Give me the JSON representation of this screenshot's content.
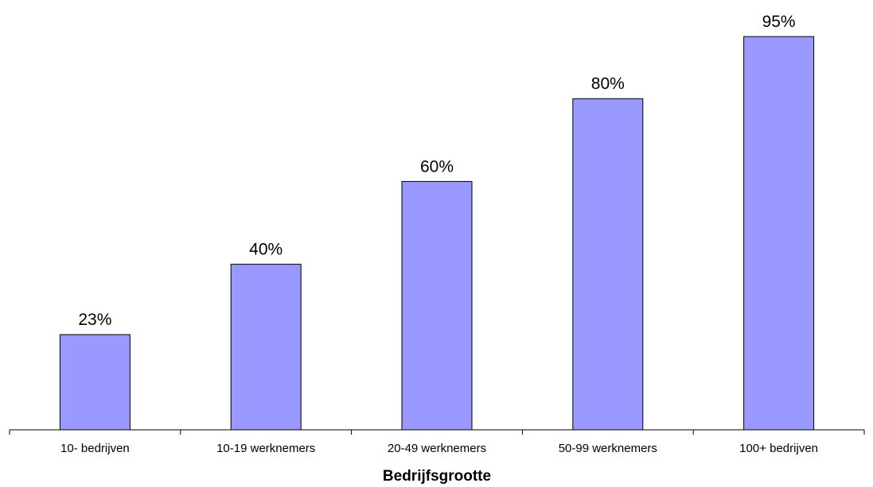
{
  "chart_data": {
    "type": "bar",
    "categories": [
      "10- bedrijven",
      "10-19 werknemers",
      "20-49 werknemers",
      "50-99 werknemers",
      "100+ bedrijven"
    ],
    "values": [
      23,
      40,
      60,
      80,
      95
    ],
    "value_labels": [
      "23%",
      "40%",
      "60%",
      "80%",
      "95%"
    ],
    "unit": "%",
    "title": "",
    "xlabel": "Bedrijfsgrootte",
    "ylabel": "",
    "ylim": [
      0,
      100
    ],
    "grid": false,
    "legend": "none",
    "bar_color": "#9999ff"
  }
}
